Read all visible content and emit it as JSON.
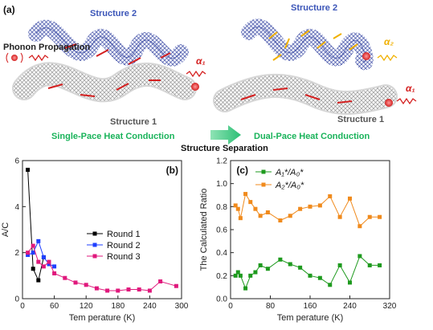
{
  "panel_a": {
    "label": "(a)",
    "structure2_left": "Structure 2",
    "structure2_right": "Structure 2",
    "structure1_left": "Structure 1",
    "structure1_right": "Structure 1",
    "phonon_label": "Phonon Propagation",
    "alpha1_left": "α₁",
    "alpha1_right": "α₁",
    "alpha2_right": "α₂",
    "single_pace": "Single-Pace Heat Conduction",
    "dual_pace": "Dual-Pace Heat Conduction",
    "separation": "Structure Separation",
    "colors": {
      "tube_blue": "#2a3a9a",
      "tube_gray": "#8a8a8a",
      "arrow_red": "#d42020",
      "arrow_yellow": "#f0b000",
      "green_text": "#19b35a",
      "title_blue": "#3b55b8"
    }
  },
  "chart_data": [
    {
      "type": "line",
      "panel_label": "(b)",
      "xlabel": "Tem perature (K)",
      "ylabel": "A/C",
      "xlim": [
        0,
        300
      ],
      "ylim": [
        0,
        6
      ],
      "xticks": [
        "0",
        "60",
        "120",
        "180",
        "240",
        "300"
      ],
      "yticks": [
        "0",
        "2",
        "4",
        "6"
      ],
      "legend": "center-right",
      "series": [
        {
          "name": "Round 1",
          "color": "#000000",
          "x": [
            10,
            20,
            30,
            40
          ],
          "y": [
            5.6,
            1.3,
            0.8,
            1.8
          ]
        },
        {
          "name": "Round 2",
          "color": "#1f3fff",
          "x": [
            10,
            20,
            30,
            40,
            50,
            60
          ],
          "y": [
            1.9,
            2.0,
            2.5,
            1.8,
            1.5,
            1.4
          ]
        },
        {
          "name": "Round 3",
          "color": "#e0187c",
          "x": [
            10,
            20,
            30,
            40,
            50,
            60,
            80,
            100,
            120,
            140,
            160,
            180,
            200,
            220,
            240,
            260,
            290
          ],
          "y": [
            2.0,
            2.3,
            1.6,
            1.4,
            1.6,
            1.1,
            0.9,
            0.7,
            0.6,
            0.45,
            0.35,
            0.35,
            0.4,
            0.4,
            0.35,
            0.75,
            0.55
          ]
        }
      ]
    },
    {
      "type": "line",
      "panel_label": "(c)",
      "xlabel": "Tem perature (K)",
      "ylabel": "The Calculated Ratio",
      "xlim": [
        0,
        320
      ],
      "ylim": [
        0.0,
        1.2
      ],
      "xticks": [
        "0",
        "80",
        "160",
        "240",
        "320"
      ],
      "yticks": [
        "0.0",
        "0.2",
        "0.4",
        "0.6",
        "0.8",
        "1.0",
        "1.2"
      ],
      "legend": "top-left",
      "series": [
        {
          "name": "A₁*/A₀*",
          "color": "#1e9a1e",
          "x": [
            10,
            15,
            20,
            30,
            40,
            50,
            60,
            75,
            100,
            120,
            140,
            160,
            180,
            200,
            220,
            240,
            260,
            280,
            300
          ],
          "y": [
            0.2,
            0.23,
            0.2,
            0.09,
            0.2,
            0.23,
            0.29,
            0.26,
            0.34,
            0.3,
            0.27,
            0.2,
            0.18,
            0.12,
            0.29,
            0.14,
            0.37,
            0.29,
            0.29
          ]
        },
        {
          "name": "A₂*/A₀*",
          "color": "#f08a1c",
          "x": [
            10,
            15,
            20,
            30,
            40,
            50,
            60,
            75,
            100,
            120,
            140,
            160,
            180,
            200,
            220,
            240,
            260,
            280,
            300
          ],
          "y": [
            0.81,
            0.78,
            0.7,
            0.91,
            0.84,
            0.78,
            0.72,
            0.75,
            0.68,
            0.72,
            0.78,
            0.8,
            0.81,
            0.89,
            0.71,
            0.87,
            0.63,
            0.71,
            0.71
          ]
        }
      ]
    }
  ]
}
